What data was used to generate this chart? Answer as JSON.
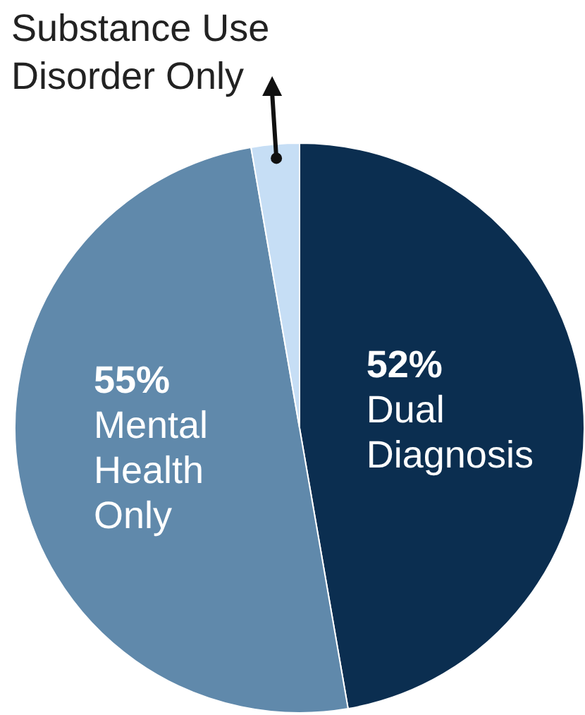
{
  "chart_data": {
    "type": "pie",
    "categories": [
      "Dual Diagnosis",
      "Mental Health Only",
      "Substance Use Disorder Only"
    ],
    "values": [
      52,
      55,
      3
    ],
    "colors": [
      "#0b2e50",
      "#6089ab",
      "#c6def5"
    ],
    "value_labels": [
      "52%",
      "55%",
      null
    ],
    "legend": false
  }
}
